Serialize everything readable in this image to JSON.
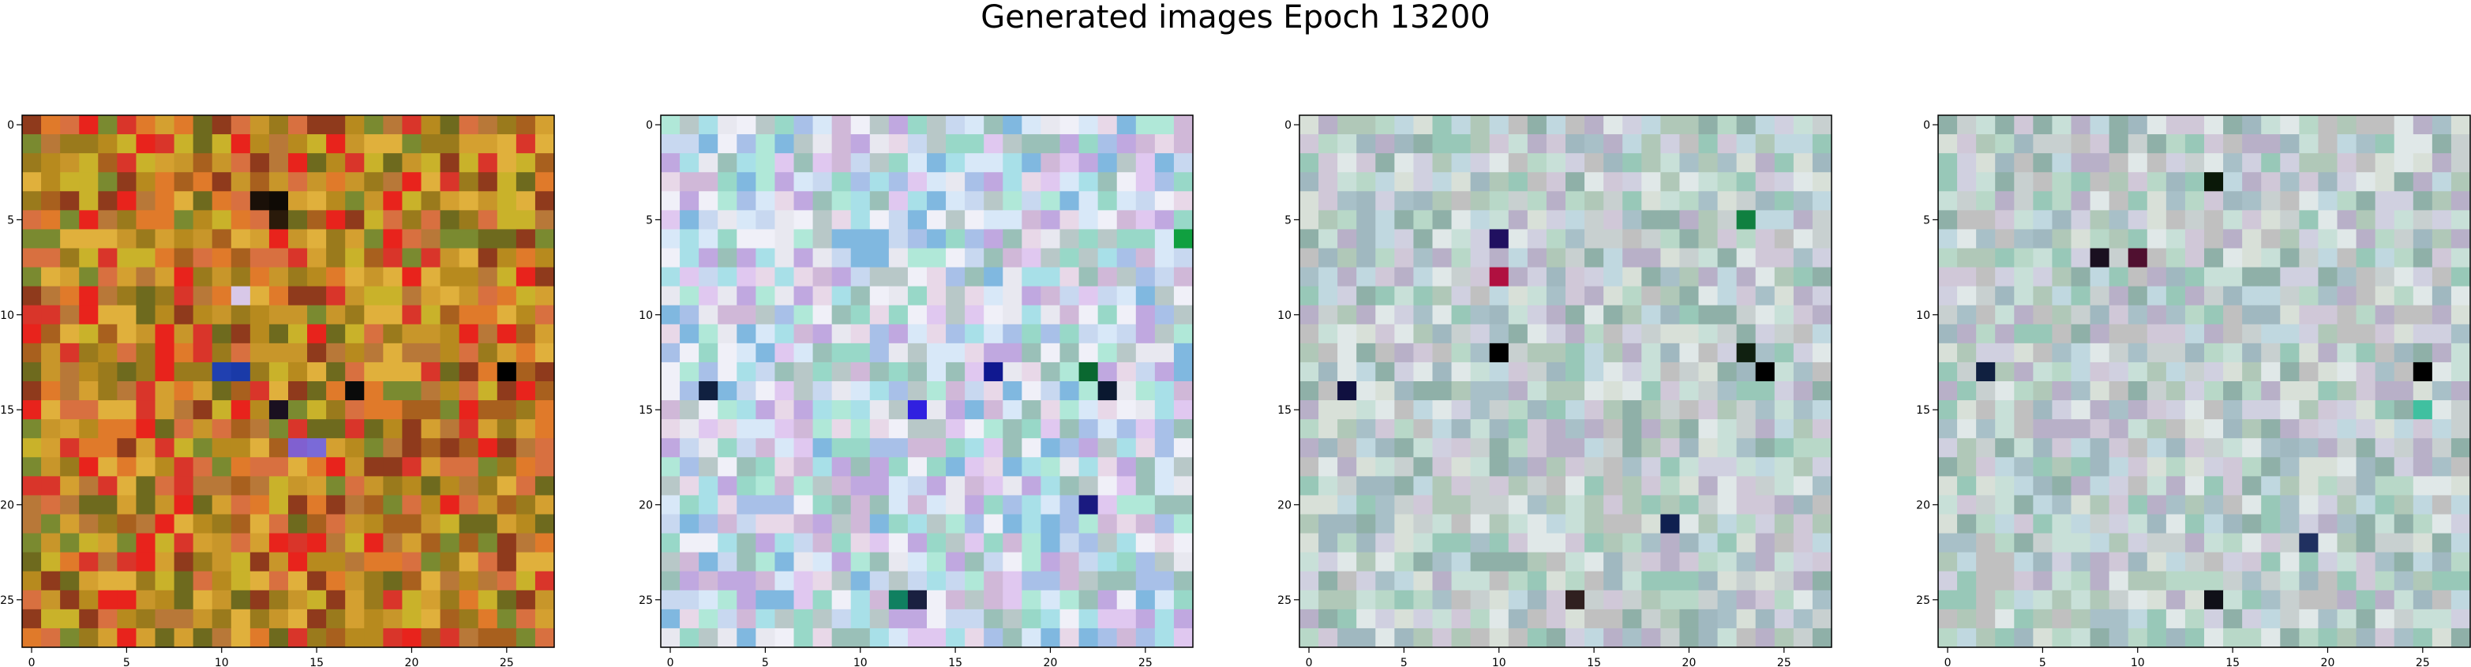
{
  "title": "Generated images Epoch 13200",
  "chart_data": [
    {
      "type": "heatmap",
      "name": "generated-image-1",
      "size": [
        28,
        28
      ],
      "xticks": [
        0,
        5,
        10,
        15,
        20,
        25
      ],
      "yticks": [
        0,
        5,
        10,
        15,
        20,
        25
      ],
      "xlim": [
        -0.5,
        27.5
      ],
      "ylim": [
        27.5,
        -0.5
      ],
      "palette": [
        "#c8962a",
        "#b78a1e",
        "#d4a030",
        "#e07a2a",
        "#d9352a",
        "#e8231c",
        "#9a7a1c",
        "#6e6a1e",
        "#a8601e",
        "#c9b22a",
        "#8f3a1c",
        "#d87040",
        "#7a8a30",
        "#b87838",
        "#e0b03c"
      ],
      "highlights": [
        {
          "x": 12,
          "y": 4,
          "color": "#1a1008"
        },
        {
          "x": 13,
          "y": 4,
          "color": "#0f0a05"
        },
        {
          "x": 13,
          "y": 5,
          "color": "#2a1a0a"
        },
        {
          "x": 10,
          "y": 13,
          "color": "#2040b0"
        },
        {
          "x": 11,
          "y": 13,
          "color": "#1a3aa8"
        },
        {
          "x": 13,
          "y": 15,
          "color": "#1a1020"
        },
        {
          "x": 14,
          "y": 17,
          "color": "#8060d0"
        },
        {
          "x": 15,
          "y": 17,
          "color": "#7a6ad8"
        },
        {
          "x": 25,
          "y": 13,
          "color": "#000000"
        },
        {
          "x": 17,
          "y": 14,
          "color": "#0a0a0a"
        },
        {
          "x": 11,
          "y": 9,
          "color": "#d8c8e8"
        }
      ]
    },
    {
      "type": "heatmap",
      "name": "generated-image-2",
      "size": [
        28,
        28
      ],
      "xticks": [
        0,
        5,
        10,
        15,
        20,
        25
      ],
      "yticks": [
        0,
        5,
        10,
        15,
        20,
        25
      ],
      "xlim": [
        -0.5,
        27.5
      ],
      "ylim": [
        27.5,
        -0.5
      ],
      "palette": [
        "#c8d8f0",
        "#b0e8d8",
        "#e0c8f0",
        "#a8c0e8",
        "#d8e8f8",
        "#98d8c8",
        "#c0a8e0",
        "#e8e8f0",
        "#80b8e0",
        "#d0b8d8",
        "#a8e0e8",
        "#e8d8e8",
        "#b8c8c8",
        "#9ac0b8",
        "#f0f0f8"
      ],
      "highlights": [
        {
          "x": 13,
          "y": 15,
          "color": "#3020e0"
        },
        {
          "x": 17,
          "y": 13,
          "color": "#101890"
        },
        {
          "x": 22,
          "y": 13,
          "color": "#0a6830"
        },
        {
          "x": 2,
          "y": 14,
          "color": "#102040"
        },
        {
          "x": 22,
          "y": 20,
          "color": "#1a1a80"
        },
        {
          "x": 13,
          "y": 25,
          "color": "#1a2040"
        },
        {
          "x": 12,
          "y": 25,
          "color": "#108060"
        },
        {
          "x": 23,
          "y": 14,
          "color": "#0a1830"
        },
        {
          "x": 27,
          "y": 6,
          "color": "#10a040"
        }
      ]
    },
    {
      "type": "heatmap",
      "name": "generated-image-3",
      "size": [
        28,
        28
      ],
      "xticks": [
        0,
        5,
        10,
        15,
        20,
        25
      ],
      "yticks": [
        0,
        5,
        10,
        15,
        20,
        25
      ],
      "xlim": [
        -0.5,
        27.5
      ],
      "ylim": [
        27.5,
        -0.5
      ],
      "palette": [
        "#c8d0d0",
        "#b8d8c8",
        "#a8c0c8",
        "#d0c8d8",
        "#c0d8e0",
        "#98c8b8",
        "#b8b0c8",
        "#d8e0d8",
        "#a0b8c0",
        "#c8e0d8",
        "#b0c8b8",
        "#d0d0e0",
        "#8fb0a8",
        "#c0c0c0",
        "#e0e8e8"
      ],
      "highlights": [
        {
          "x": 10,
          "y": 6,
          "color": "#201060"
        },
        {
          "x": 10,
          "y": 8,
          "color": "#b01040"
        },
        {
          "x": 10,
          "y": 12,
          "color": "#000000"
        },
        {
          "x": 24,
          "y": 13,
          "color": "#000000"
        },
        {
          "x": 23,
          "y": 12,
          "color": "#102010"
        },
        {
          "x": 14,
          "y": 25,
          "color": "#302020"
        },
        {
          "x": 2,
          "y": 14,
          "color": "#101040"
        },
        {
          "x": 23,
          "y": 5,
          "color": "#108040"
        },
        {
          "x": 19,
          "y": 21,
          "color": "#102050"
        }
      ]
    },
    {
      "type": "heatmap",
      "name": "generated-image-4",
      "size": [
        28,
        28
      ],
      "xticks": [
        0,
        5,
        10,
        15,
        20,
        25
      ],
      "yticks": [
        0,
        5,
        10,
        15,
        20,
        25
      ],
      "xlim": [
        -0.5,
        27.5
      ],
      "ylim": [
        27.5,
        -0.5
      ],
      "palette": [
        "#c8d0d0",
        "#b8d8c8",
        "#a8c0c8",
        "#d0c8d8",
        "#c0d8e0",
        "#98c8b8",
        "#b8b0c8",
        "#d8e0d8",
        "#a0b8c0",
        "#c8e0d8",
        "#b0c8b8",
        "#d0d0e0",
        "#8fb0a8",
        "#c0c0c0",
        "#e0e8e8"
      ],
      "highlights": [
        {
          "x": 14,
          "y": 3,
          "color": "#0a1808"
        },
        {
          "x": 25,
          "y": 13,
          "color": "#000000"
        },
        {
          "x": 8,
          "y": 7,
          "color": "#1a1020"
        },
        {
          "x": 14,
          "y": 25,
          "color": "#101018"
        },
        {
          "x": 2,
          "y": 13,
          "color": "#102040"
        },
        {
          "x": 19,
          "y": 22,
          "color": "#203060"
        },
        {
          "x": 10,
          "y": 7,
          "color": "#501030"
        },
        {
          "x": 25,
          "y": 15,
          "color": "#40c0a0"
        }
      ]
    }
  ]
}
